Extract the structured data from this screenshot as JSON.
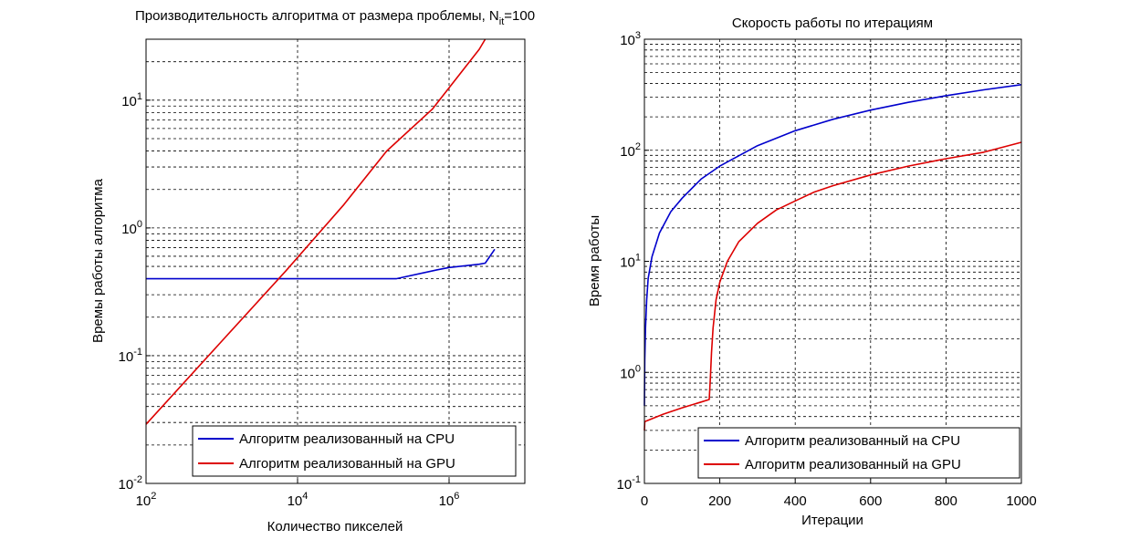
{
  "chart_data": [
    {
      "type": "line",
      "title": "Производительность алгоритма от размера проблемы, N",
      "title_sub": "it",
      "title_suffix": "=100",
      "xlabel": "Количество пикселей",
      "ylabel": "Времы работы алгоритма",
      "xscale": "log",
      "yscale": "log",
      "xlim": [
        100,
        10000000
      ],
      "ylim": [
        0.01,
        30
      ],
      "grid": true,
      "legend_position": "bottom-right",
      "x_ticks": [
        {
          "base": "10",
          "exp": "2",
          "value": 100
        },
        {
          "base": "10",
          "exp": "4",
          "value": 10000
        },
        {
          "base": "10",
          "exp": "6",
          "value": 1000000
        }
      ],
      "y_ticks": [
        {
          "base": "10",
          "exp": "-2",
          "value": 0.01
        },
        {
          "base": "10",
          "exp": "-1",
          "value": 0.1
        },
        {
          "base": "10",
          "exp": "0",
          "value": 1
        },
        {
          "base": "10",
          "exp": "1",
          "value": 10
        }
      ],
      "series": [
        {
          "name": "Алгоритм реализованный на CPU",
          "color": "#0000cc",
          "x": [
            100,
            200000,
            700000,
            1000000,
            2500000,
            3000000,
            4000000
          ],
          "y": [
            0.4,
            0.4,
            0.47,
            0.49,
            0.52,
            0.53,
            0.68
          ]
        },
        {
          "name": "Алгоритм реализованный на GPU",
          "color": "#dd0000",
          "x": [
            100,
            1000,
            7000,
            40000,
            150000,
            600000,
            2500000,
            3000000
          ],
          "y": [
            0.029,
            0.13,
            0.46,
            1.5,
            4.0,
            8.5,
            25,
            30
          ]
        }
      ]
    },
    {
      "type": "line",
      "title": "Скорость работы по итерациям",
      "xlabel": "Итерации",
      "ylabel": "Время работы",
      "xscale": "linear",
      "yscale": "log",
      "xlim": [
        0,
        1000
      ],
      "ylim": [
        0.1,
        1000
      ],
      "grid": true,
      "legend_position": "bottom-right",
      "x_ticks": [
        {
          "label": "0",
          "value": 0
        },
        {
          "label": "200",
          "value": 200
        },
        {
          "label": "400",
          "value": 400
        },
        {
          "label": "600",
          "value": 600
        },
        {
          "label": "800",
          "value": 800
        },
        {
          "label": "1000",
          "value": 1000
        }
      ],
      "y_ticks": [
        {
          "base": "10",
          "exp": "-1",
          "value": 0.1
        },
        {
          "base": "10",
          "exp": "0",
          "value": 1
        },
        {
          "base": "10",
          "exp": "1",
          "value": 10
        },
        {
          "base": "10",
          "exp": "2",
          "value": 100
        },
        {
          "base": "10",
          "exp": "3",
          "value": 1000
        }
      ],
      "series": [
        {
          "name": "Алгоритм реализованный на CPU",
          "color": "#0000cc",
          "x": [
            0,
            1,
            3,
            6,
            10,
            20,
            40,
            70,
            100,
            150,
            200,
            300,
            400,
            500,
            600,
            700,
            800,
            900,
            1000
          ],
          "y": [
            0.5,
            1.3,
            2.5,
            4.5,
            7,
            11,
            18,
            28,
            37,
            55,
            72,
            110,
            150,
            190,
            230,
            270,
            310,
            350,
            390
          ]
        },
        {
          "name": "Алгоритм реализованный на GPU",
          "color": "#dd0000",
          "x": [
            0,
            1,
            50,
            100,
            150,
            172,
            175,
            178,
            182,
            190,
            200,
            220,
            250,
            300,
            350,
            400,
            450,
            500,
            600,
            700,
            800,
            900,
            1000
          ],
          "y": [
            0.3,
            0.36,
            0.42,
            0.48,
            0.54,
            0.57,
            0.9,
            1.5,
            2.5,
            4.5,
            6.5,
            10,
            15,
            22,
            29,
            35,
            42,
            48,
            60,
            72,
            84,
            96,
            118
          ]
        }
      ]
    }
  ]
}
